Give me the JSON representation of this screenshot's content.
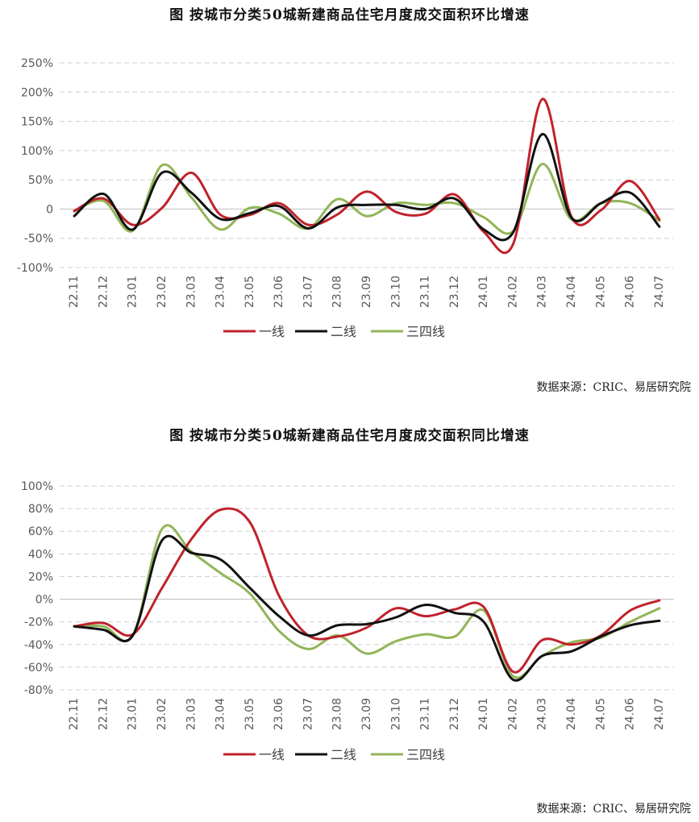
{
  "chart_data": [
    {
      "type": "line",
      "title": "图  按城市分类50城新建商品住宅月度成交面积环比增速",
      "categories": [
        "22.11",
        "22.12",
        "23.01",
        "23.02",
        "23.03",
        "23.04",
        "23.05",
        "23.06",
        "23.07",
        "23.08",
        "23.09",
        "23.10",
        "23.11",
        "23.12",
        "24.01",
        "24.02",
        "24.03",
        "24.04",
        "24.05",
        "24.06",
        "24.07"
      ],
      "y_ticks": [
        "250%",
        "200%",
        "150%",
        "100%",
        "50%",
        "0",
        "-50%",
        "-100%"
      ],
      "ylim": [
        -100,
        250
      ],
      "y_unit": "%",
      "series": [
        {
          "name": "一线",
          "color": "#c0222b",
          "values": [
            -3,
            18,
            -27,
            2,
            62,
            -10,
            -10,
            10,
            -27,
            -9,
            30,
            -5,
            -8,
            25,
            -39,
            -60,
            188,
            -14,
            -2,
            48,
            -18
          ]
        },
        {
          "name": "二线",
          "color": "#111111",
          "values": [
            -12,
            26,
            -35,
            62,
            28,
            -17,
            -7,
            5,
            -33,
            3,
            7,
            7,
            0,
            18,
            -35,
            -40,
            128,
            -15,
            10,
            28,
            -30
          ]
        },
        {
          "name": "三四线",
          "color": "#92b558",
          "values": [
            -4,
            14,
            -37,
            75,
            20,
            -35,
            2,
            -8,
            -33,
            17,
            -12,
            10,
            7,
            10,
            -14,
            -38,
            77,
            -18,
            10,
            10,
            -20
          ]
        }
      ],
      "source": "数据来源：CRIC、易居研究院"
    },
    {
      "type": "line",
      "title": "图  按城市分类50城新建商品住宅月度成交面积同比增速",
      "categories": [
        "22.11",
        "22.12",
        "23.01",
        "23.02",
        "23.03",
        "23.04",
        "23.05",
        "23.06",
        "23.07",
        "23.08",
        "23.09",
        "23.10",
        "23.11",
        "23.12",
        "24.01",
        "24.02",
        "24.03",
        "24.04",
        "24.05",
        "24.06",
        "24.07"
      ],
      "y_ticks": [
        "100%",
        "80%",
        "60%",
        "40%",
        "20%",
        "0%",
        "-20%",
        "-40%",
        "-60%",
        "-80%"
      ],
      "ylim": [
        -80,
        100
      ],
      "y_unit": "%",
      "series": [
        {
          "name": "一线",
          "color": "#c0222b",
          "values": [
            -24,
            -21,
            -31,
            10,
            53,
            79,
            68,
            3,
            -32,
            -33,
            -25,
            -8,
            -15,
            -9,
            -7,
            -64,
            -36,
            -40,
            -32,
            -10,
            -1
          ]
        },
        {
          "name": "二线",
          "color": "#111111",
          "values": [
            -24,
            -27,
            -32,
            52,
            41,
            35,
            10,
            -15,
            -32,
            -23,
            -22,
            -16,
            -5,
            -12,
            -20,
            -71,
            -50,
            -46,
            -33,
            -23,
            -19
          ]
        },
        {
          "name": "三四线",
          "color": "#92b558",
          "values": [
            -24,
            -24,
            -32,
            62,
            42,
            23,
            5,
            -28,
            -44,
            -32,
            -48,
            -37,
            -31,
            -33,
            -10,
            -68,
            -50,
            -38,
            -34,
            -20,
            -8
          ]
        }
      ],
      "source": "数据来源：CRIC、易居研究院"
    }
  ]
}
